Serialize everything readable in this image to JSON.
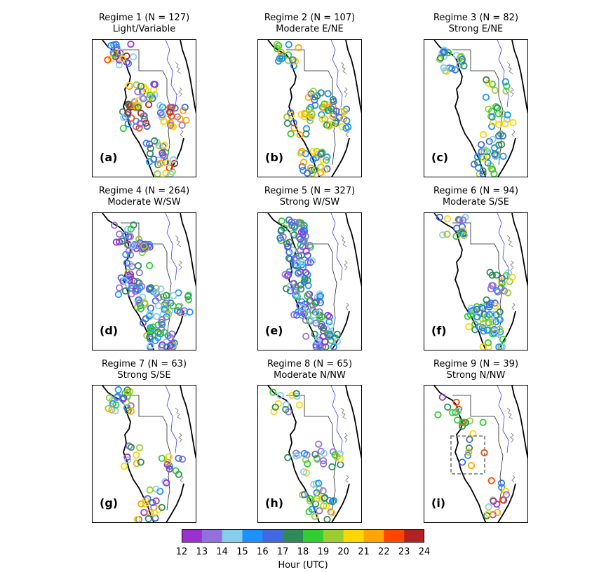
{
  "panels": [
    {
      "line1": "Regime 1 (N = 127)",
      "line2": "Light/Variable",
      "label": "(a)"
    },
    {
      "line1": "Regime 2 (N = 107)",
      "line2": "Moderate E/NE",
      "label": "(b)"
    },
    {
      "line1": "Regime 3 (N = 82)",
      "line2": "Strong E/NE",
      "label": "(c)"
    },
    {
      "line1": "Regime 4 (N = 264)",
      "line2": "Moderate W/SW",
      "label": "(d)"
    },
    {
      "line1": "Regime 5 (N = 327)",
      "line2": "Strong W/SW",
      "label": "(e)"
    },
    {
      "line1": "Regime 6 (N = 94)",
      "line2": "Moderate S/SE",
      "label": "(f)"
    },
    {
      "line1": "Regime 7 (N = 63)",
      "line2": "Strong S/SE",
      "label": "(g)"
    },
    {
      "line1": "Regime 8 (N = 65)",
      "line2": "Moderate N/NW",
      "label": "(h)"
    },
    {
      "line1": "Regime 9 (N = 39)",
      "line2": "Strong N/NW",
      "label": "(i)"
    }
  ],
  "chart_data": {
    "type": "scatter",
    "colorbar": {
      "label": "Hour (UTC)",
      "ticks": [
        "12",
        "13",
        "14",
        "15",
        "16",
        "17",
        "18",
        "19",
        "20",
        "21",
        "22",
        "23",
        "24"
      ],
      "range": [
        12,
        24
      ],
      "colors": [
        "#9932CC",
        "#9370DB",
        "#87CEEB",
        "#1E90FF",
        "#4169E1",
        "#2E8B57",
        "#32CD32",
        "#9ACD32",
        "#FFD700",
        "#FFA500",
        "#FF4500",
        "#B22222"
      ]
    },
    "regime_counts": [
      127,
      107,
      82,
      264,
      327,
      94,
      63,
      65,
      39
    ]
  }
}
